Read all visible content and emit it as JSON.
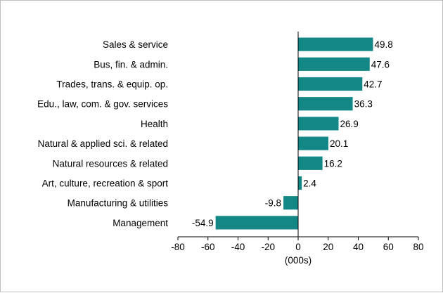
{
  "chart_data": {
    "type": "bar",
    "orientation": "horizontal",
    "categories": [
      "Sales & service",
      "Bus, fin. & admin.",
      "Trades, trans. & equip. op.",
      "Edu., law, com. & gov. services",
      "Health",
      "Natural & applied sci. & related",
      "Natural resources & related",
      "Art, culture, recreation & sport",
      "Manufacturing & utilities",
      "Management"
    ],
    "values": [
      49.8,
      47.6,
      42.7,
      36.3,
      26.9,
      20.1,
      16.2,
      2.4,
      -9.8,
      -54.9
    ],
    "value_labels": [
      "49.8",
      "47.6",
      "42.7",
      "36.3",
      "26.9",
      "20.1",
      "16.2",
      "2.4",
      "-9.8",
      "-54.9"
    ],
    "xlim": [
      -80,
      80
    ],
    "xticks": [
      -80,
      -60,
      -40,
      -20,
      0,
      20,
      40,
      60,
      80
    ],
    "xtick_labels": [
      "-80",
      "-60",
      "-40",
      "-20",
      "0",
      "20",
      "40",
      "60",
      "80"
    ],
    "xlabel": "(000s)",
    "title": "",
    "grid": false,
    "legend": "none",
    "bar_color": "#138786"
  }
}
